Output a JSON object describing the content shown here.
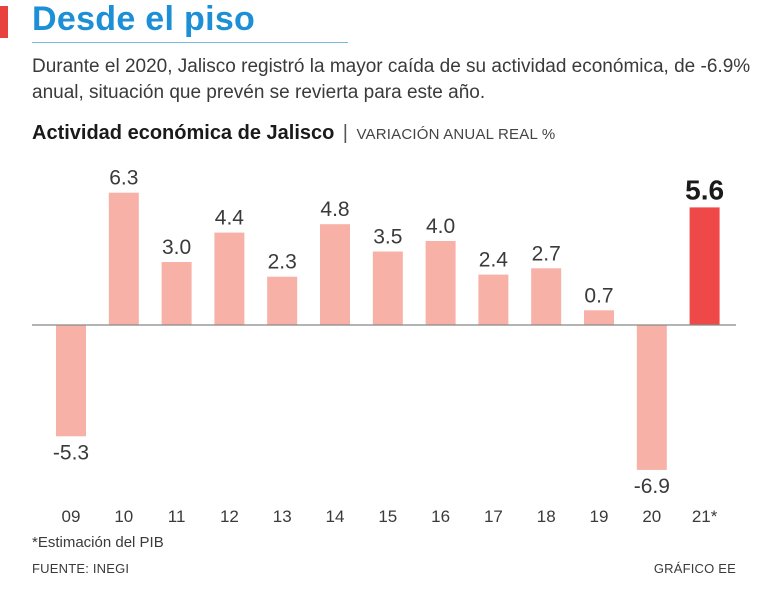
{
  "headline": "Desde el piso",
  "lead": "Durante el 2020, Jalisco registró la mayor caída de su actividad económica, de -6.9% anual, situación que prevén se revierta para este año.",
  "chart_heading": {
    "title": "Actividad económica de Jalisco",
    "separator": "|",
    "subtitle": "VARIACIÓN ANUAL REAL %"
  },
  "chart_data": {
    "type": "bar",
    "title": "Actividad económica de Jalisco",
    "subtitle": "VARIACIÓN ANUAL REAL %",
    "categories": [
      "09",
      "10",
      "11",
      "12",
      "13",
      "14",
      "15",
      "16",
      "17",
      "18",
      "19",
      "20",
      "21*"
    ],
    "values": [
      -5.3,
      6.3,
      3.0,
      4.4,
      2.3,
      4.8,
      3.5,
      4.0,
      2.4,
      2.7,
      0.7,
      -6.9,
      5.6
    ],
    "value_labels": [
      "-5.3",
      "6.3",
      "3.0",
      "4.4",
      "2.3",
      "4.8",
      "3.5",
      "4.0",
      "2.4",
      "2.7",
      "0.7",
      "-6.9",
      "5.6"
    ],
    "highlight_index": 12,
    "colors": {
      "bar": "#f7b1a6",
      "highlight": "#ef4848",
      "axis": "#888888"
    },
    "ylim": [
      -7,
      6.5
    ],
    "grid": false,
    "legend": "none"
  },
  "footnote": "*Estimación del PIB",
  "source": "FUENTE: INEGI",
  "credit": "GRÁFICO EE"
}
